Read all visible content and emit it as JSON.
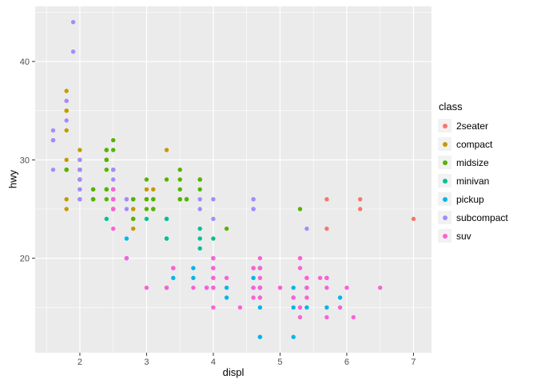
{
  "chart_data": {
    "type": "scatter",
    "xlabel": "displ",
    "ylabel": "hwy",
    "legend_title": "class",
    "legend_position": "right",
    "grid": "on",
    "panel_bg": "#EBEBEB",
    "grid_color": "#FFFFFF",
    "tick_label_color": "#4D4D4D",
    "tick_mark_color": "#333333",
    "xlim": [
      1.33,
      7.27
    ],
    "ylim": [
      10.4,
      45.6
    ],
    "x_ticks": [
      2,
      3,
      4,
      5,
      6,
      7
    ],
    "y_ticks": [
      20,
      30,
      40
    ],
    "x_minor_ticks": [
      1.5,
      2.5,
      3.5,
      4.5,
      5.5,
      6.5
    ],
    "y_minor_ticks": [
      15,
      25,
      35,
      45
    ],
    "series": [
      {
        "name": "2seater",
        "color": "#F8766D",
        "points": [
          [
            5.7,
            26
          ],
          [
            5.7,
            23
          ],
          [
            6.2,
            26
          ],
          [
            6.2,
            25
          ],
          [
            7.0,
            24
          ]
        ]
      },
      {
        "name": "compact",
        "color": "#C49A00",
        "points": [
          [
            1.8,
            29
          ],
          [
            1.8,
            29
          ],
          [
            2.0,
            31
          ],
          [
            2.0,
            30
          ],
          [
            2.8,
            26
          ],
          [
            2.8,
            26
          ],
          [
            3.1,
            27
          ],
          [
            1.8,
            26
          ],
          [
            1.8,
            25
          ],
          [
            2.0,
            28
          ],
          [
            2.0,
            27
          ],
          [
            2.8,
            25
          ],
          [
            2.8,
            25
          ],
          [
            3.1,
            25
          ],
          [
            3.1,
            25
          ],
          [
            2.2,
            26
          ],
          [
            2.2,
            27
          ],
          [
            2.4,
            30
          ],
          [
            2.4,
            31
          ],
          [
            3.0,
            26
          ],
          [
            3.0,
            27
          ],
          [
            3.3,
            31
          ],
          [
            1.8,
            30
          ],
          [
            1.8,
            33
          ],
          [
            1.8,
            35
          ],
          [
            1.8,
            37
          ],
          [
            1.8,
            35
          ],
          [
            2.0,
            29
          ],
          [
            2.0,
            29
          ],
          [
            2.0,
            28
          ],
          [
            2.0,
            29
          ],
          [
            2.8,
            24
          ],
          [
            2.0,
            29
          ],
          [
            2.0,
            26
          ],
          [
            2.0,
            29
          ],
          [
            2.0,
            28
          ],
          [
            2.5,
            29
          ],
          [
            2.5,
            29
          ],
          [
            2.8,
            23
          ],
          [
            2.8,
            24
          ],
          [
            2.0,
            30
          ],
          [
            2.2,
            26
          ],
          [
            2.2,
            26
          ],
          [
            2.5,
            25
          ],
          [
            2.5,
            25
          ],
          [
            2.5,
            27
          ],
          [
            2.5,
            25
          ],
          [
            2.5,
            27
          ],
          [
            2.5,
            26
          ]
        ]
      },
      {
        "name": "midsize",
        "color": "#53B400",
        "points": [
          [
            2.8,
            24
          ],
          [
            3.1,
            25
          ],
          [
            4.2,
            23
          ],
          [
            2.4,
            27
          ],
          [
            2.4,
            30
          ],
          [
            3.1,
            26
          ],
          [
            3.5,
            29
          ],
          [
            3.6,
            26
          ],
          [
            2.4,
            26
          ],
          [
            2.4,
            27
          ],
          [
            2.4,
            30
          ],
          [
            2.4,
            31
          ],
          [
            2.5,
            26
          ],
          [
            2.5,
            26
          ],
          [
            3.3,
            28
          ],
          [
            2.4,
            29
          ],
          [
            2.4,
            27
          ],
          [
            2.5,
            31
          ],
          [
            2.5,
            32
          ],
          [
            3.5,
            27
          ],
          [
            3.5,
            26
          ],
          [
            3.0,
            26
          ],
          [
            3.0,
            25
          ],
          [
            3.5,
            26
          ],
          [
            3.1,
            26
          ],
          [
            3.8,
            28
          ],
          [
            3.8,
            27
          ],
          [
            3.8,
            28
          ],
          [
            5.3,
            25
          ],
          [
            2.2,
            26
          ],
          [
            2.2,
            27
          ],
          [
            2.4,
            30
          ],
          [
            2.4,
            31
          ],
          [
            3.0,
            26
          ],
          [
            3.0,
            28
          ],
          [
            3.5,
            28
          ],
          [
            1.8,
            29
          ],
          [
            1.8,
            29
          ],
          [
            2.0,
            28
          ],
          [
            2.0,
            29
          ],
          [
            2.8,
            26
          ],
          [
            2.8,
            26
          ],
          [
            3.6,
            26
          ]
        ]
      },
      {
        "name": "minivan",
        "color": "#00C094",
        "points": [
          [
            2.4,
            24
          ],
          [
            3.0,
            24
          ],
          [
            3.3,
            22
          ],
          [
            3.3,
            22
          ],
          [
            3.3,
            24
          ],
          [
            3.3,
            24
          ],
          [
            3.3,
            17
          ],
          [
            3.8,
            22
          ],
          [
            3.8,
            21
          ],
          [
            3.8,
            23
          ],
          [
            4.0,
            22
          ]
        ]
      },
      {
        "name": "pickup",
        "color": "#00B6EB",
        "points": [
          [
            3.7,
            19
          ],
          [
            3.7,
            18
          ],
          [
            3.9,
            17
          ],
          [
            3.9,
            17
          ],
          [
            4.7,
            19
          ],
          [
            4.7,
            19
          ],
          [
            4.7,
            12
          ],
          [
            5.2,
            17
          ],
          [
            5.2,
            15
          ],
          [
            4.7,
            17
          ],
          [
            4.7,
            15
          ],
          [
            4.7,
            17
          ],
          [
            4.7,
            17
          ],
          [
            4.7,
            12
          ],
          [
            4.7,
            17
          ],
          [
            5.2,
            16
          ],
          [
            5.2,
            12
          ],
          [
            5.7,
            15
          ],
          [
            5.9,
            16
          ],
          [
            4.2,
            17
          ],
          [
            4.2,
            16
          ],
          [
            4.6,
            18
          ],
          [
            4.6,
            17
          ],
          [
            4.6,
            19
          ],
          [
            5.4,
            17
          ],
          [
            5.4,
            15
          ],
          [
            2.7,
            20
          ],
          [
            2.7,
            20
          ],
          [
            2.7,
            22
          ],
          [
            3.4,
            19
          ],
          [
            3.4,
            18
          ],
          [
            4.0,
            20
          ],
          [
            4.0,
            18
          ]
        ]
      },
      {
        "name": "subcompact",
        "color": "#A58AFF",
        "points": [
          [
            1.6,
            33
          ],
          [
            1.6,
            32
          ],
          [
            1.6,
            32
          ],
          [
            1.6,
            29
          ],
          [
            1.6,
            32
          ],
          [
            1.8,
            34
          ],
          [
            1.8,
            36
          ],
          [
            1.8,
            36
          ],
          [
            2.0,
            29
          ],
          [
            2.0,
            26
          ],
          [
            2.0,
            28
          ],
          [
            2.0,
            27
          ],
          [
            2.0,
            30
          ],
          [
            2.7,
            25
          ],
          [
            2.7,
            26
          ],
          [
            2.7,
            26
          ],
          [
            3.8,
            26
          ],
          [
            3.8,
            25
          ],
          [
            4.0,
            26
          ],
          [
            4.0,
            24
          ],
          [
            4.6,
            25
          ],
          [
            4.6,
            25
          ],
          [
            4.6,
            26
          ],
          [
            4.6,
            26
          ],
          [
            5.4,
            23
          ],
          [
            1.9,
            44
          ],
          [
            1.9,
            41
          ],
          [
            2.0,
            29
          ],
          [
            2.0,
            26
          ],
          [
            2.5,
            28
          ],
          [
            2.5,
            29
          ]
        ]
      },
      {
        "name": "suv",
        "color": "#FB61D7",
        "points": [
          [
            5.3,
            20
          ],
          [
            5.3,
            15
          ],
          [
            5.3,
            20
          ],
          [
            5.7,
            17
          ],
          [
            6.0,
            17
          ],
          [
            5.3,
            14
          ],
          [
            5.3,
            19
          ],
          [
            5.7,
            14
          ],
          [
            6.5,
            17
          ],
          [
            3.9,
            17
          ],
          [
            4.7,
            16
          ],
          [
            4.7,
            18
          ],
          [
            4.7,
            17
          ],
          [
            5.2,
            16
          ],
          [
            5.7,
            18
          ],
          [
            5.9,
            15
          ],
          [
            4.6,
            17
          ],
          [
            5.4,
            17
          ],
          [
            5.4,
            18
          ],
          [
            4.0,
            17
          ],
          [
            4.0,
            19
          ],
          [
            4.0,
            17
          ],
          [
            4.0,
            19
          ],
          [
            4.6,
            19
          ],
          [
            5.0,
            17
          ],
          [
            3.0,
            17
          ],
          [
            3.7,
            17
          ],
          [
            4.0,
            18
          ],
          [
            4.7,
            17
          ],
          [
            4.7,
            19
          ],
          [
            4.7,
            17
          ],
          [
            5.7,
            18
          ],
          [
            6.1,
            14
          ],
          [
            4.0,
            15
          ],
          [
            4.2,
            18
          ],
          [
            4.4,
            15
          ],
          [
            4.6,
            16
          ],
          [
            5.4,
            17
          ],
          [
            5.4,
            16
          ],
          [
            5.4,
            18
          ],
          [
            4.0,
            17
          ],
          [
            4.0,
            19
          ],
          [
            4.6,
            19
          ],
          [
            5.0,
            17
          ],
          [
            3.3,
            17
          ],
          [
            3.3,
            17
          ],
          [
            4.0,
            20
          ],
          [
            5.6,
            18
          ],
          [
            2.5,
            26
          ],
          [
            2.5,
            25
          ],
          [
            2.5,
            27
          ],
          [
            2.5,
            25
          ],
          [
            2.5,
            26
          ],
          [
            2.5,
            23
          ],
          [
            2.7,
            20
          ],
          [
            2.7,
            20
          ],
          [
            3.4,
            19
          ],
          [
            3.4,
            19
          ],
          [
            4.0,
            20
          ],
          [
            4.7,
            20
          ],
          [
            4.7,
            16
          ],
          [
            5.7,
            18
          ]
        ]
      }
    ]
  }
}
